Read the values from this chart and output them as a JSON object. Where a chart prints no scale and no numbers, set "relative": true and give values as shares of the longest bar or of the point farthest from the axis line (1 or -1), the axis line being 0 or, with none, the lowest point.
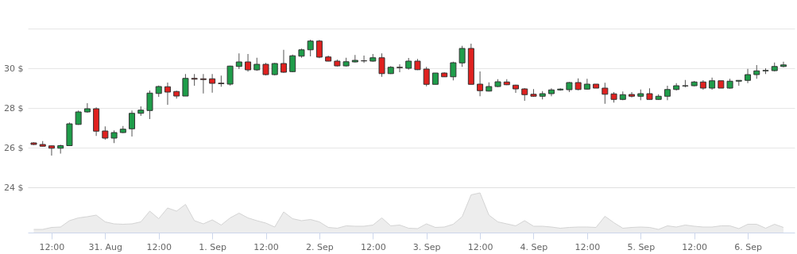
{
  "chart_data": [
    {
      "type": "candlestick",
      "tick_labels": "y",
      "grid": "y",
      "ylim": [
        24,
        32
      ],
      "yticks": [
        {
          "value": 24,
          "label": "24 $"
        },
        {
          "value": 26,
          "label": "26 $"
        },
        {
          "value": 28,
          "label": "28 $"
        },
        {
          "value": 30,
          "label": "30 $"
        },
        {
          "value": 32,
          "label": null
        }
      ],
      "categories": [
        null,
        null,
        null,
        null,
        null,
        null,
        null,
        null,
        null,
        null,
        null,
        null,
        null,
        null,
        null,
        null,
        null,
        null,
        null,
        null,
        null,
        null,
        null,
        null,
        null,
        null,
        null,
        null,
        null,
        null,
        null,
        null,
        null,
        null,
        null,
        null,
        null,
        null,
        null,
        null,
        null,
        null,
        null,
        null,
        null,
        null,
        null,
        null,
        null,
        null,
        null,
        null,
        null,
        null,
        null,
        null,
        null,
        null,
        null,
        null,
        null,
        null,
        null,
        null,
        null,
        null,
        null,
        null,
        null,
        null,
        null,
        null,
        null,
        null,
        null,
        null,
        null,
        null,
        null,
        null,
        null,
        null,
        null,
        null,
        null
      ],
      "ohlc": [
        [
          26.24,
          26.27,
          26.13,
          26.16
        ],
        [
          26.16,
          26.33,
          26.07,
          26.07
        ],
        [
          26.09,
          26.1,
          25.6,
          25.97
        ],
        [
          25.97,
          26.15,
          25.7,
          26.1
        ],
        [
          26.1,
          27.27,
          26.09,
          27.2
        ],
        [
          27.17,
          27.87,
          27.15,
          27.8
        ],
        [
          27.8,
          28.24,
          27.76,
          27.96
        ],
        [
          27.96,
          28.03,
          26.59,
          26.83
        ],
        [
          26.84,
          27.07,
          26.4,
          26.48
        ],
        [
          26.48,
          26.87,
          26.23,
          26.76
        ],
        [
          26.76,
          27.09,
          26.73,
          26.93
        ],
        [
          26.95,
          27.87,
          26.56,
          27.73
        ],
        [
          27.73,
          28.08,
          27.6,
          27.89
        ],
        [
          27.87,
          28.88,
          27.44,
          28.75
        ],
        [
          28.73,
          29.13,
          28.56,
          29.08
        ],
        [
          29.07,
          29.28,
          28.16,
          28.8
        ],
        [
          28.83,
          28.87,
          28.47,
          28.6
        ],
        [
          28.6,
          29.71,
          28.6,
          29.49
        ],
        [
          29.49,
          29.71,
          29.12,
          29.45
        ],
        [
          29.47,
          29.71,
          28.73,
          29.43
        ],
        [
          29.47,
          29.71,
          28.77,
          29.24
        ],
        [
          29.25,
          29.63,
          29.07,
          29.22
        ],
        [
          29.2,
          30.13,
          29.13,
          30.11
        ],
        [
          30.09,
          30.75,
          29.96,
          30.32
        ],
        [
          30.32,
          30.72,
          29.83,
          29.92
        ],
        [
          29.92,
          30.53,
          29.87,
          30.2
        ],
        [
          30.2,
          30.27,
          29.64,
          29.68
        ],
        [
          29.68,
          30.27,
          29.64,
          30.24
        ],
        [
          30.24,
          30.93,
          29.77,
          29.8
        ],
        [
          29.83,
          30.69,
          29.8,
          30.63
        ],
        [
          30.61,
          30.99,
          30.53,
          30.93
        ],
        [
          30.93,
          31.44,
          30.6,
          31.37
        ],
        [
          31.37,
          31.43,
          30.51,
          30.56
        ],
        [
          30.57,
          30.64,
          30.35,
          30.36
        ],
        [
          30.36,
          30.44,
          30.09,
          30.12
        ],
        [
          30.12,
          30.53,
          30.09,
          30.33
        ],
        [
          30.32,
          30.67,
          30.29,
          30.4
        ],
        [
          30.38,
          30.64,
          30.27,
          30.37
        ],
        [
          30.36,
          30.72,
          30.33,
          30.53
        ],
        [
          30.53,
          30.75,
          29.57,
          29.73
        ],
        [
          29.73,
          30.11,
          29.71,
          30.05
        ],
        [
          30.05,
          30.2,
          29.8,
          30.03
        ],
        [
          30.0,
          30.52,
          29.93,
          30.36
        ],
        [
          30.36,
          30.47,
          29.91,
          29.93
        ],
        [
          29.96,
          30.07,
          29.09,
          29.19
        ],
        [
          29.19,
          29.76,
          29.19,
          29.76
        ],
        [
          29.76,
          29.8,
          29.56,
          29.57
        ],
        [
          29.57,
          30.33,
          29.39,
          30.28
        ],
        [
          30.27,
          31.13,
          30.07,
          31.0
        ],
        [
          31.0,
          31.24,
          29.19,
          29.19
        ],
        [
          29.2,
          29.84,
          28.59,
          28.87
        ],
        [
          28.85,
          29.29,
          28.83,
          29.08
        ],
        [
          29.08,
          29.45,
          29.05,
          29.32
        ],
        [
          29.31,
          29.45,
          29.15,
          29.17
        ],
        [
          29.15,
          29.17,
          28.76,
          28.96
        ],
        [
          28.96,
          29.0,
          28.36,
          28.67
        ],
        [
          28.69,
          28.95,
          28.56,
          28.59
        ],
        [
          28.59,
          28.85,
          28.43,
          28.72
        ],
        [
          28.72,
          28.99,
          28.59,
          28.91
        ],
        [
          28.91,
          28.99,
          28.87,
          28.95
        ],
        [
          28.92,
          29.31,
          28.8,
          29.28
        ],
        [
          29.28,
          29.49,
          28.89,
          28.93
        ],
        [
          28.95,
          29.47,
          28.92,
          29.2
        ],
        [
          29.2,
          29.2,
          29.0,
          29.0
        ],
        [
          29.0,
          29.27,
          28.21,
          28.69
        ],
        [
          28.71,
          28.8,
          28.27,
          28.43
        ],
        [
          28.43,
          28.83,
          28.39,
          28.67
        ],
        [
          28.68,
          28.8,
          28.53,
          28.59
        ],
        [
          28.59,
          28.93,
          28.39,
          28.72
        ],
        [
          28.72,
          28.99,
          28.43,
          28.43
        ],
        [
          28.43,
          28.69,
          28.41,
          28.59
        ],
        [
          28.59,
          29.12,
          28.39,
          28.93
        ],
        [
          28.93,
          29.25,
          28.88,
          29.12
        ],
        [
          29.11,
          29.41,
          29.04,
          29.12
        ],
        [
          29.12,
          29.36,
          29.09,
          29.31
        ],
        [
          29.31,
          29.4,
          28.92,
          29.0
        ],
        [
          29.0,
          29.53,
          28.92,
          29.37
        ],
        [
          29.37,
          29.37,
          29.0,
          29.0
        ],
        [
          29.0,
          29.47,
          28.97,
          29.35
        ],
        [
          29.35,
          29.39,
          29.12,
          29.39
        ],
        [
          29.39,
          29.97,
          29.25,
          29.68
        ],
        [
          29.68,
          30.16,
          29.47,
          29.87
        ],
        [
          29.87,
          30.0,
          29.71,
          29.89
        ],
        [
          29.88,
          30.29,
          29.84,
          30.09
        ],
        [
          30.09,
          30.33,
          30.05,
          30.17
        ]
      ],
      "colors": [
        "#e0211f",
        "#e0211f",
        "#e0211f",
        "#1f9d4a",
        "#1f9d4a",
        "#1f9d4a",
        "#1f9d4a",
        "#e0211f",
        "#e0211f",
        "#1f9d4a",
        "#1f9d4a",
        "#1f9d4a",
        "#1f9d4a",
        "#1f9d4a",
        "#1f9d4a",
        "#e0211f",
        "#e0211f",
        "#1f9d4a",
        "#e0211f",
        "#e0211f",
        "#e0211f",
        "#e0211f",
        "#1f9d4a",
        "#1f9d4a",
        "#e0211f",
        "#1f9d4a",
        "#e0211f",
        "#1f9d4a",
        "#e0211f",
        "#1f9d4a",
        "#1f9d4a",
        "#1f9d4a",
        "#e0211f",
        "#e0211f",
        "#e0211f",
        "#1f9d4a",
        "#1f9d4a",
        "#e0211f",
        "#1f9d4a",
        "#e0211f",
        "#1f9d4a",
        "#e0211f",
        "#1f9d4a",
        "#e0211f",
        "#e0211f",
        "#1f9d4a",
        "#e0211f",
        "#1f9d4a",
        "#1f9d4a",
        "#e0211f",
        "#e0211f",
        "#1f9d4a",
        "#1f9d4a",
        "#e0211f",
        "#e0211f",
        "#e0211f",
        "#e0211f",
        "#1f9d4a",
        "#1f9d4a",
        "#1f9d4a",
        "#1f9d4a",
        "#e0211f",
        "#1f9d4a",
        "#e0211f",
        "#e0211f",
        "#e0211f",
        "#1f9d4a",
        "#e0211f",
        "#1f9d4a",
        "#e0211f",
        "#1f9d4a",
        "#1f9d4a",
        "#1f9d4a",
        "#1f9d4a",
        "#1f9d4a",
        "#e0211f",
        "#1f9d4a",
        "#e0211f",
        "#1f9d4a",
        "#1f9d4a",
        "#1f9d4a",
        "#1f9d4a",
        "#1f9d4a",
        "#1f9d4a",
        "#1f9d4a"
      ]
    },
    {
      "type": "area",
      "relative": true,
      "tick_labels": "x",
      "color": "#e6e6e6",
      "xlim": [
        "--08-30T06:40",
        "--09-06T10:30"
      ],
      "xticks": [
        {
          "value": "--08-30T12:00",
          "label": "12:00"
        },
        {
          "value": "--08-31T00:00",
          "label": "31. Aug"
        },
        {
          "value": "--08-31T12:00",
          "label": "12:00"
        },
        {
          "value": "--09-01T00:00",
          "label": "1. Sep"
        },
        {
          "value": "--09-01T12:00",
          "label": "12:00"
        },
        {
          "value": "--09-02T00:00",
          "label": "2. Sep"
        },
        {
          "value": "--09-02T12:00",
          "label": "12:00"
        },
        {
          "value": "--09-03T00:00",
          "label": "3. Sep"
        },
        {
          "value": "--09-03T12:00",
          "label": "12:00"
        },
        {
          "value": "--09-04T00:00",
          "label": "4. Sep"
        },
        {
          "value": "--09-04T12:00",
          "label": "12:00"
        },
        {
          "value": "--09-05T00:00",
          "label": "5. Sep"
        },
        {
          "value": "--09-05T12:00",
          "label": "12:00"
        },
        {
          "value": "--09-06T00:00",
          "label": "6. Sep"
        }
      ],
      "x": [
        "--08-30T08:00",
        "--08-30T10:00",
        "--08-30T12:00",
        "--08-30T14:00",
        "--08-30T16:00",
        "--08-30T18:00",
        "--08-30T20:00",
        "--08-30T22:00",
        "--08-31T00:00",
        "--08-31T02:00",
        "--08-31T04:00",
        "--08-31T06:00",
        "--08-31T08:00",
        "--08-31T10:00",
        "--08-31T12:00",
        "--08-31T14:00",
        "--08-31T16:00",
        "--08-31T18:00",
        "--08-31T20:00",
        "--08-31T22:00",
        "--09-01T00:00",
        "--09-01T02:00",
        "--09-01T04:00",
        "--09-01T06:00",
        "--09-01T08:00",
        "--09-01T10:00",
        "--09-01T12:00",
        "--09-01T14:00",
        "--09-01T16:00",
        "--09-01T18:00",
        "--09-01T20:00",
        "--09-01T22:00",
        "--09-02T00:00",
        "--09-02T02:00",
        "--09-02T04:00",
        "--09-02T06:00",
        "--09-02T08:00",
        "--09-02T10:00",
        "--09-02T12:00",
        "--09-02T14:00",
        "--09-02T16:00",
        "--09-02T18:00",
        "--09-02T20:00",
        "--09-02T22:00",
        "--09-03T00:00",
        "--09-03T02:00",
        "--09-03T04:00",
        "--09-03T06:00",
        "--09-03T08:00",
        "--09-03T10:00",
        "--09-03T12:00",
        "--09-03T14:00",
        "--09-03T16:00",
        "--09-03T18:00",
        "--09-03T20:00",
        "--09-03T22:00",
        "--09-04T00:00",
        "--09-04T02:00",
        "--09-04T04:00",
        "--09-04T06:00",
        "--09-04T08:00",
        "--09-04T10:00",
        "--09-04T12:00",
        "--09-04T14:00",
        "--09-04T16:00",
        "--09-04T18:00",
        "--09-04T20:00",
        "--09-04T22:00",
        "--09-05T00:00",
        "--09-05T02:00",
        "--09-05T04:00",
        "--09-05T06:00",
        "--09-05T08:00",
        "--09-05T10:00",
        "--09-05T12:00",
        "--09-05T14:00",
        "--09-05T16:00",
        "--09-05T18:00",
        "--09-05T20:00",
        "--09-05T22:00",
        "--09-06T00:00",
        "--09-06T02:00",
        "--09-06T04:00",
        "--09-06T06:00",
        "--09-06T08:00"
      ],
      "values": [
        0.08,
        0.08,
        0.13,
        0.14,
        0.3,
        0.37,
        0.4,
        0.44,
        0.27,
        0.22,
        0.21,
        0.22,
        0.27,
        0.54,
        0.35,
        0.62,
        0.54,
        0.71,
        0.3,
        0.22,
        0.32,
        0.19,
        0.37,
        0.49,
        0.37,
        0.3,
        0.24,
        0.14,
        0.52,
        0.35,
        0.3,
        0.33,
        0.27,
        0.13,
        0.11,
        0.17,
        0.16,
        0.16,
        0.19,
        0.37,
        0.17,
        0.19,
        0.11,
        0.1,
        0.22,
        0.13,
        0.14,
        0.21,
        0.4,
        0.95,
        1,
        0.44,
        0.27,
        0.22,
        0.17,
        0.3,
        0.16,
        0.16,
        0.14,
        0.11,
        0.13,
        0.14,
        0.14,
        0.13,
        0.41,
        0.25,
        0.11,
        0.13,
        0.14,
        0.13,
        0.08,
        0.17,
        0.14,
        0.19,
        0.16,
        0.14,
        0.14,
        0.17,
        0.17,
        0.1,
        0.21,
        0.21,
        0.11,
        0.21,
        0.13
      ]
    }
  ]
}
